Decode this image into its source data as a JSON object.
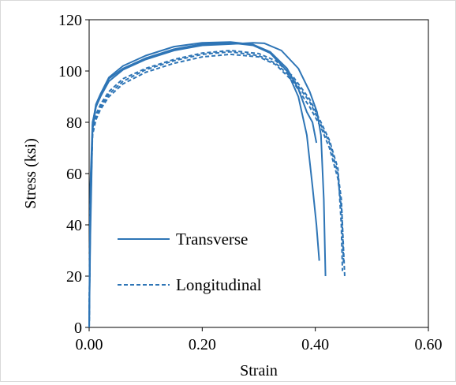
{
  "chart_data": {
    "type": "line",
    "title": "",
    "xlabel": "Strain",
    "ylabel": "Stress (ksi)",
    "xlim": [
      0,
      0.6
    ],
    "ylim": [
      0,
      120
    ],
    "xticks": [
      "0.00",
      "0.20",
      "0.40",
      "0.60"
    ],
    "yticks": [
      "0",
      "20",
      "40",
      "60",
      "80",
      "100",
      "120"
    ],
    "grid": false,
    "legend_position": "inside-lower-left",
    "legend": [
      {
        "label": "Transverse",
        "style": "solid"
      },
      {
        "label": "Longitudinal",
        "style": "dashed"
      }
    ],
    "color": "#2e75b6",
    "series": [
      {
        "group": "Transverse",
        "style": "solid",
        "x": [
          0,
          0.002,
          0.006,
          0.012,
          0.02,
          0.035,
          0.06,
          0.1,
          0.15,
          0.2,
          0.25,
          0.29,
          0.32,
          0.35,
          0.37,
          0.385,
          0.395,
          0.402,
          0.407
        ],
        "y": [
          0,
          35,
          77,
          86,
          90,
          97,
          101,
          105,
          108.5,
          110.5,
          111,
          110,
          107,
          100,
          90,
          75,
          55,
          40,
          26
        ]
      },
      {
        "group": "Transverse",
        "style": "solid",
        "x": [
          0,
          0.002,
          0.006,
          0.012,
          0.02,
          0.035,
          0.06,
          0.1,
          0.15,
          0.2,
          0.25,
          0.29,
          0.32,
          0.35,
          0.37,
          0.385,
          0.395,
          0.402
        ],
        "y": [
          0,
          40,
          79,
          87,
          91,
          97.5,
          102,
          106,
          109.5,
          111,
          111.3,
          110.3,
          107.5,
          101,
          93,
          84,
          80,
          72
        ]
      },
      {
        "group": "Transverse",
        "style": "solid",
        "x": [
          0,
          0.002,
          0.006,
          0.012,
          0.02,
          0.035,
          0.06,
          0.1,
          0.15,
          0.2,
          0.25,
          0.29,
          0.31,
          0.34,
          0.37,
          0.39,
          0.403,
          0.41,
          0.415,
          0.418
        ],
        "y": [
          0,
          55,
          80,
          86,
          90,
          96,
          100.5,
          104.5,
          108,
          110,
          110.5,
          111,
          110.8,
          108,
          101,
          92,
          84,
          75,
          50,
          20
        ]
      },
      {
        "group": "Longitudinal",
        "style": "dashed",
        "x": [
          0,
          0.002,
          0.006,
          0.012,
          0.02,
          0.035,
          0.06,
          0.1,
          0.15,
          0.2,
          0.25,
          0.3,
          0.33,
          0.36,
          0.39,
          0.41,
          0.425,
          0.44,
          0.446,
          0.449,
          0.452
        ],
        "y": [
          0,
          50,
          76,
          82,
          86,
          91,
          96,
          100.5,
          104,
          106.5,
          107.5,
          106,
          103,
          97,
          88,
          79,
          72,
          60,
          50,
          35,
          20
        ]
      },
      {
        "group": "Longitudinal",
        "style": "dashed",
        "x": [
          0,
          0.002,
          0.006,
          0.012,
          0.02,
          0.035,
          0.06,
          0.1,
          0.15,
          0.2,
          0.25,
          0.3,
          0.33,
          0.36,
          0.39,
          0.41,
          0.425,
          0.44,
          0.447,
          0.45
        ],
        "y": [
          0,
          45,
          75,
          81,
          85,
          90,
          95,
          99.5,
          103,
          105.5,
          106.5,
          105.5,
          102.5,
          96,
          86,
          78,
          70,
          58,
          45,
          25
        ]
      },
      {
        "group": "Longitudinal",
        "style": "dashed",
        "x": [
          0,
          0.002,
          0.006,
          0.012,
          0.02,
          0.035,
          0.06,
          0.1,
          0.15,
          0.2,
          0.25,
          0.3,
          0.33,
          0.36,
          0.39,
          0.41,
          0.425,
          0.44,
          0.446,
          0.448
        ],
        "y": [
          0,
          48,
          77,
          83,
          87,
          92,
          97,
          101,
          104.5,
          107,
          108,
          106.8,
          104,
          98,
          89,
          80,
          73,
          62,
          40,
          22
        ]
      }
    ]
  }
}
